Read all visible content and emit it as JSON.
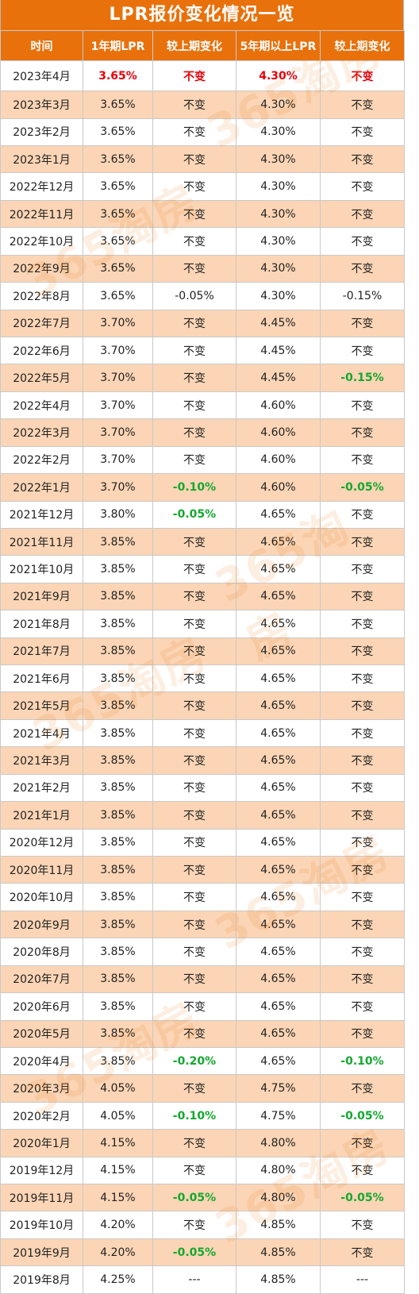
{
  "title": "LPR报价变化情况一览",
  "headers": [
    "时间",
    "1年期LPR",
    "较上期变化",
    "5年期以上LPR",
    "较上期变化"
  ],
  "colors": {
    "header_bg": "#e8710c",
    "alt_row": "#fbd5b5",
    "highlight_red": "#e8000b",
    "decrease_green": "#14a830"
  },
  "watermark_text": "365淘房",
  "rows": [
    {
      "time": "2023年4月",
      "lpr1": "3.65%",
      "chg1": "不变",
      "lpr5": "4.30%",
      "chg5": "不变",
      "style1": "red",
      "stylec1": "red",
      "style5": "red",
      "stylec5": "red"
    },
    {
      "time": "2023年3月",
      "lpr1": "3.65%",
      "chg1": "不变",
      "lpr5": "4.30%",
      "chg5": "不变"
    },
    {
      "time": "2023年2月",
      "lpr1": "3.65%",
      "chg1": "不变",
      "lpr5": "4.30%",
      "chg5": "不变"
    },
    {
      "time": "2023年1月",
      "lpr1": "3.65%",
      "chg1": "不变",
      "lpr5": "4.30%",
      "chg5": "不变"
    },
    {
      "time": "2022年12月",
      "lpr1": "3.65%",
      "chg1": "不变",
      "lpr5": "4.30%",
      "chg5": "不变"
    },
    {
      "time": "2022年11月",
      "lpr1": "3.65%",
      "chg1": "不变",
      "lpr5": "4.30%",
      "chg5": "不变"
    },
    {
      "time": "2022年10月",
      "lpr1": "3.65%",
      "chg1": "不变",
      "lpr5": "4.30%",
      "chg5": "不变"
    },
    {
      "time": "2022年9月",
      "lpr1": "3.65%",
      "chg1": "不变",
      "lpr5": "4.30%",
      "chg5": "不变"
    },
    {
      "time": "2022年8月",
      "lpr1": "3.65%",
      "chg1": "-0.05%",
      "lpr5": "4.30%",
      "chg5": "-0.15%"
    },
    {
      "time": "2022年7月",
      "lpr1": "3.70%",
      "chg1": "不变",
      "lpr5": "4.45%",
      "chg5": "不变"
    },
    {
      "time": "2022年6月",
      "lpr1": "3.70%",
      "chg1": "不变",
      "lpr5": "4.45%",
      "chg5": "不变"
    },
    {
      "time": "2022年5月",
      "lpr1": "3.70%",
      "chg1": "不变",
      "lpr5": "4.45%",
      "chg5": "-0.15%",
      "stylec5": "green"
    },
    {
      "time": "2022年4月",
      "lpr1": "3.70%",
      "chg1": "不变",
      "lpr5": "4.60%",
      "chg5": "不变"
    },
    {
      "time": "2022年3月",
      "lpr1": "3.70%",
      "chg1": "不变",
      "lpr5": "4.60%",
      "chg5": "不变"
    },
    {
      "time": "2022年2月",
      "lpr1": "3.70%",
      "chg1": "不变",
      "lpr5": "4.60%",
      "chg5": "不变"
    },
    {
      "time": "2022年1月",
      "lpr1": "3.70%",
      "chg1": "-0.10%",
      "lpr5": "4.60%",
      "chg5": "-0.05%",
      "stylec1": "green",
      "stylec5": "green"
    },
    {
      "time": "2021年12月",
      "lpr1": "3.80%",
      "chg1": "-0.05%",
      "lpr5": "4.65%",
      "chg5": "不变",
      "stylec1": "green"
    },
    {
      "time": "2021年11月",
      "lpr1": "3.85%",
      "chg1": "不变",
      "lpr5": "4.65%",
      "chg5": "不变"
    },
    {
      "time": "2021年10月",
      "lpr1": "3.85%",
      "chg1": "不变",
      "lpr5": "4.65%",
      "chg5": "不变"
    },
    {
      "time": "2021年9月",
      "lpr1": "3.85%",
      "chg1": "不变",
      "lpr5": "4.65%",
      "chg5": "不变"
    },
    {
      "time": "2021年8月",
      "lpr1": "3.85%",
      "chg1": "不变",
      "lpr5": "4.65%",
      "chg5": "不变"
    },
    {
      "time": "2021年7月",
      "lpr1": "3.85%",
      "chg1": "不变",
      "lpr5": "4.65%",
      "chg5": "不变"
    },
    {
      "time": "2021年6月",
      "lpr1": "3.85%",
      "chg1": "不变",
      "lpr5": "4.65%",
      "chg5": "不变"
    },
    {
      "time": "2021年5月",
      "lpr1": "3.85%",
      "chg1": "不变",
      "lpr5": "4.65%",
      "chg5": "不变"
    },
    {
      "time": "2021年4月",
      "lpr1": "3.85%",
      "chg1": "不变",
      "lpr5": "4.65%",
      "chg5": "不变"
    },
    {
      "time": "2021年3月",
      "lpr1": "3.85%",
      "chg1": "不变",
      "lpr5": "4.65%",
      "chg5": "不变"
    },
    {
      "time": "2021年2月",
      "lpr1": "3.85%",
      "chg1": "不变",
      "lpr5": "4.65%",
      "chg5": "不变"
    },
    {
      "time": "2021年1月",
      "lpr1": "3.85%",
      "chg1": "不变",
      "lpr5": "4.65%",
      "chg5": "不变"
    },
    {
      "time": "2020年12月",
      "lpr1": "3.85%",
      "chg1": "不变",
      "lpr5": "4.65%",
      "chg5": "不变"
    },
    {
      "time": "2020年11月",
      "lpr1": "3.85%",
      "chg1": "不变",
      "lpr5": "4.65%",
      "chg5": "不变"
    },
    {
      "time": "2020年10月",
      "lpr1": "3.85%",
      "chg1": "不变",
      "lpr5": "4.65%",
      "chg5": "不变"
    },
    {
      "time": "2020年9月",
      "lpr1": "3.85%",
      "chg1": "不变",
      "lpr5": "4.65%",
      "chg5": "不变"
    },
    {
      "time": "2020年8月",
      "lpr1": "3.85%",
      "chg1": "不变",
      "lpr5": "4.65%",
      "chg5": "不变"
    },
    {
      "time": "2020年7月",
      "lpr1": "3.85%",
      "chg1": "不变",
      "lpr5": "4.65%",
      "chg5": "不变"
    },
    {
      "time": "2020年6月",
      "lpr1": "3.85%",
      "chg1": "不变",
      "lpr5": "4.65%",
      "chg5": "不变"
    },
    {
      "time": "2020年5月",
      "lpr1": "3.85%",
      "chg1": "不变",
      "lpr5": "4.65%",
      "chg5": "不变"
    },
    {
      "time": "2020年4月",
      "lpr1": "3.85%",
      "chg1": "-0.20%",
      "lpr5": "4.65%",
      "chg5": "-0.10%",
      "stylec1": "green",
      "stylec5": "green"
    },
    {
      "time": "2020年3月",
      "lpr1": "4.05%",
      "chg1": "不变",
      "lpr5": "4.75%",
      "chg5": "不变"
    },
    {
      "time": "2020年2月",
      "lpr1": "4.05%",
      "chg1": "-0.10%",
      "lpr5": "4.75%",
      "chg5": "-0.05%",
      "stylec1": "green",
      "stylec5": "green"
    },
    {
      "time": "2020年1月",
      "lpr1": "4.15%",
      "chg1": "不变",
      "lpr5": "4.80%",
      "chg5": "不变"
    },
    {
      "time": "2019年12月",
      "lpr1": "4.15%",
      "chg1": "不变",
      "lpr5": "4.80%",
      "chg5": "不变"
    },
    {
      "time": "2019年11月",
      "lpr1": "4.15%",
      "chg1": "-0.05%",
      "lpr5": "4.80%",
      "chg5": "-0.05%",
      "stylec1": "green",
      "stylec5": "green"
    },
    {
      "time": "2019年10月",
      "lpr1": "4.20%",
      "chg1": "不变",
      "lpr5": "4.85%",
      "chg5": "不变"
    },
    {
      "time": "2019年9月",
      "lpr1": "4.20%",
      "chg1": "-0.05%",
      "lpr5": "4.85%",
      "chg5": "不变",
      "stylec1": "green"
    },
    {
      "time": "2019年8月",
      "lpr1": "4.25%",
      "chg1": "---",
      "lpr5": "4.85%",
      "chg5": "---"
    }
  ]
}
